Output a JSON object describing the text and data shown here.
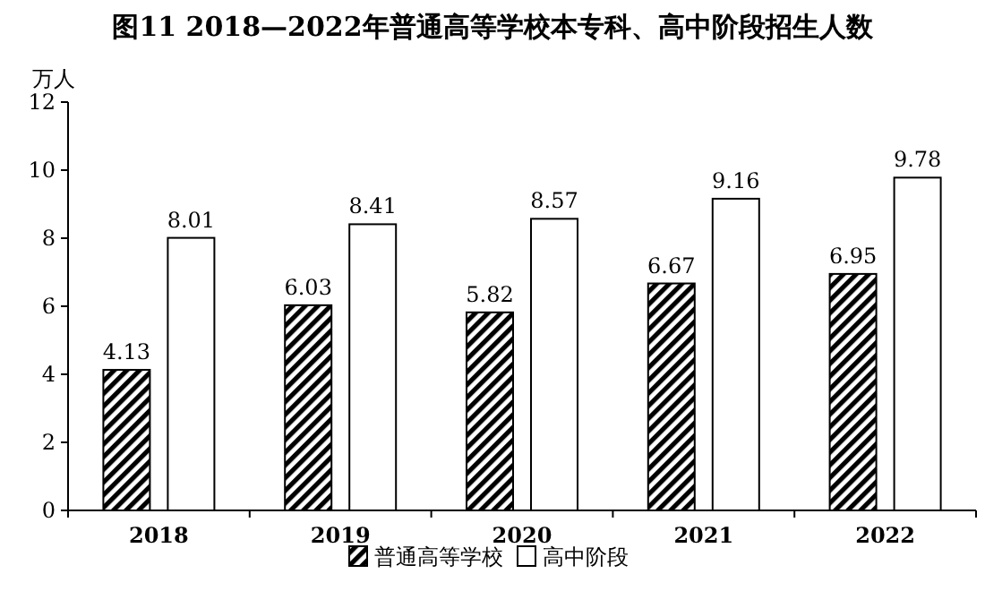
{
  "chart_data": {
    "type": "bar",
    "title": "图11  2018—2022年普通高等学校本专科、高中阶段招生人数",
    "ylabel": "万人",
    "categories": [
      "2018",
      "2019",
      "2020",
      "2021",
      "2022"
    ],
    "series": [
      {
        "name": "普通高等学校",
        "color": "#000000",
        "values": [
          4.13,
          6.03,
          5.82,
          6.67,
          6.95
        ]
      },
      {
        "name": "高中阶段",
        "color": "#ffffff",
        "values": [
          8.01,
          8.41,
          8.57,
          9.16,
          9.78
        ]
      }
    ],
    "ylim": [
      0,
      12
    ],
    "yticks": [
      0,
      2,
      4,
      6,
      8,
      10,
      12
    ],
    "data_labels": true,
    "legend": "bottom"
  }
}
